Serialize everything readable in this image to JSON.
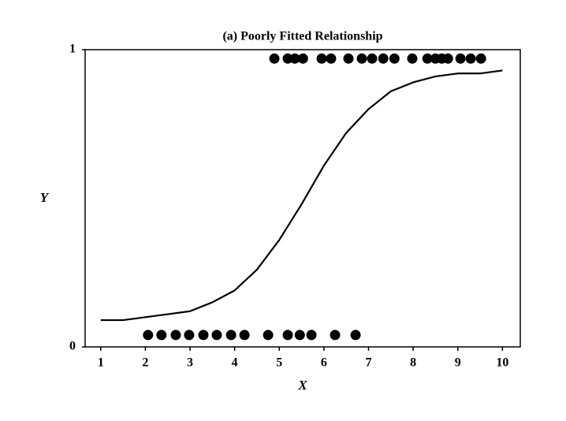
{
  "chart_data": {
    "type": "scatter",
    "title": "(a) Poorly Fitted Relationship",
    "xlabel": "X",
    "ylabel": "Y",
    "xlim": [
      0.65,
      10.4
    ],
    "ylim": [
      0,
      1
    ],
    "xticks": [
      1,
      2,
      3,
      4,
      5,
      6,
      7,
      8,
      9,
      10
    ],
    "yticks": [
      0,
      1
    ],
    "series": [
      {
        "type": "scatter",
        "color": "#000000",
        "x": [
          4.89,
          5.19,
          5.35,
          5.53,
          5.95,
          6.16,
          6.55,
          6.85,
          7.08,
          7.33,
          7.58,
          7.98,
          8.32,
          8.5,
          8.64,
          8.78,
          9.06,
          9.29,
          9.52,
          2.06,
          2.36,
          2.68,
          2.98,
          3.3,
          3.6,
          3.92,
          4.22,
          4.75,
          5.19,
          5.46,
          5.72,
          6.25,
          6.71
        ],
        "values": [
          0.97,
          0.97,
          0.97,
          0.97,
          0.97,
          0.97,
          0.97,
          0.97,
          0.97,
          0.97,
          0.97,
          0.97,
          0.97,
          0.97,
          0.97,
          0.97,
          0.97,
          0.97,
          0.97,
          0.04,
          0.04,
          0.04,
          0.04,
          0.04,
          0.04,
          0.04,
          0.04,
          0.04,
          0.04,
          0.04,
          0.04,
          0.04,
          0.04
        ]
      },
      {
        "type": "line",
        "color": "#000000",
        "x": [
          1,
          1.5,
          2,
          2.5,
          3,
          3.5,
          4,
          4.5,
          5,
          5.5,
          6,
          6.5,
          7,
          7.5,
          8,
          8.5,
          9,
          9.5,
          10
        ],
        "values": [
          0.09,
          0.09,
          0.1,
          0.11,
          0.12,
          0.15,
          0.19,
          0.26,
          0.36,
          0.48,
          0.61,
          0.72,
          0.8,
          0.86,
          0.89,
          0.91,
          0.92,
          0.92,
          0.93
        ]
      }
    ]
  }
}
